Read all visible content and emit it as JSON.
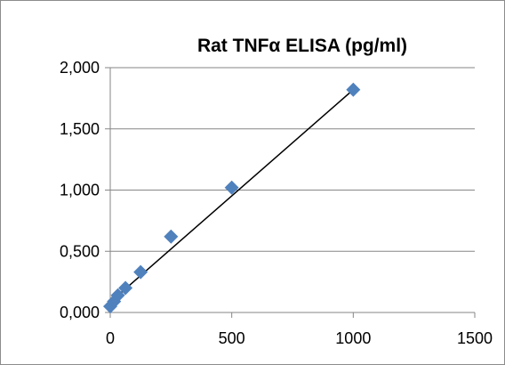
{
  "chart_data": {
    "type": "scatter",
    "title": "Rat TNFα ELISA (pg/ml)",
    "xlabel": "",
    "ylabel": "",
    "xlim": [
      0,
      1500
    ],
    "ylim": [
      0,
      2
    ],
    "x_ticks": [
      0,
      500,
      1000,
      1500
    ],
    "x_tick_labels": [
      "0",
      "500",
      "1000",
      "1500"
    ],
    "y_ticks": [
      0,
      0.5,
      1,
      1.5,
      2
    ],
    "y_tick_labels": [
      "0,000",
      "0,500",
      "1,000",
      "1,500",
      "2,000"
    ],
    "grid": "horizontal",
    "legend": "none",
    "marker": "diamond",
    "marker_color": "#4f81bd",
    "trendline_color": "#000000",
    "series": [
      {
        "x": [
          0,
          15.6,
          31.3,
          62.5,
          125,
          250,
          500,
          1000
        ],
        "y": [
          0.05,
          0.09,
          0.14,
          0.2,
          0.33,
          0.62,
          1.02,
          1.82
        ]
      }
    ],
    "trendline": {
      "x": [
        0,
        1000
      ],
      "y": [
        0.085,
        1.82
      ]
    }
  }
}
